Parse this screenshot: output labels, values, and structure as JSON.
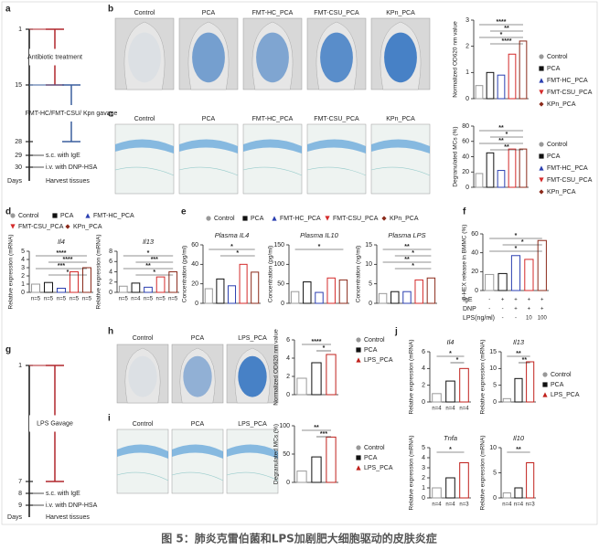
{
  "caption": "图 5：肺炎克雷伯菌和LPS加剧肥大细胞驱动的皮肤炎症",
  "panel_labels": [
    "a",
    "b",
    "c",
    "d",
    "e",
    "f",
    "g",
    "h",
    "i",
    "j"
  ],
  "timelines": [
    {
      "days": [
        1,
        15,
        28,
        29,
        30
      ],
      "axis_label": "Days",
      "treatments": [
        "Antibiotic treatment",
        "FMT-HC/FMT-CSU/ Kpn gavage"
      ],
      "treatment_colors": [
        "#b0262b",
        "#3a5f9e"
      ],
      "steps": [
        "s.c. with IgE",
        "i.v. with DNP-HSA",
        "Harvest tissues"
      ]
    },
    {
      "days": [
        1,
        7,
        8,
        9
      ],
      "axis_label": "Days",
      "treatments": [
        "LPS Gavage"
      ],
      "treatment_colors": [
        "#b0262b"
      ],
      "steps": [
        "s.c. with IgE",
        "i.v. with DNP-HSA",
        "Harvest tissues"
      ]
    }
  ],
  "image_rows": [
    {
      "labels": [
        "Control",
        "PCA",
        "FMT-HC_PCA",
        "FMT-CSU_PCA",
        "KPn_PCA"
      ]
    },
    {
      "labels": [
        "Control",
        "PCA",
        "FMT-HC_PCA",
        "FMT-CSU_PCA",
        "KPn_PCA"
      ]
    },
    {
      "labels": [
        "Control",
        "PCA",
        "LPS_PCA"
      ]
    },
    {
      "labels": [
        "Control",
        "PCA",
        "LPS_PCA"
      ]
    }
  ],
  "legends": [
    {
      "items": [
        {
          "name": "Control",
          "color": "#999999",
          "marker": "circle"
        },
        {
          "name": "PCA",
          "color": "#111111",
          "marker": "square"
        },
        {
          "name": "FMT-HC_PCA",
          "color": "#2b3fb0",
          "marker": "triangle"
        },
        {
          "name": "FMT-CSU_PCA",
          "color": "#d42a2a",
          "marker": "down"
        },
        {
          "name": "KPn_PCA",
          "color": "#8b2a1a",
          "marker": "diamond"
        }
      ]
    },
    {
      "items": [
        {
          "name": "Control",
          "color": "#999999",
          "marker": "circle"
        },
        {
          "name": "PCA",
          "color": "#111111",
          "marker": "square"
        },
        {
          "name": "FMT-HC_PCA",
          "color": "#2b3fb0",
          "marker": "triangle"
        },
        {
          "name": "FMT-CSU_PCA",
          "color": "#d42a2a",
          "marker": "down"
        },
        {
          "name": "KPn_PCA",
          "color": "#8b2a1a",
          "marker": "diamond"
        }
      ]
    },
    {
      "items": [
        {
          "name": "Control",
          "color": "#999999",
          "marker": "circle"
        },
        {
          "name": "PCA",
          "color": "#111111",
          "marker": "square"
        },
        {
          "name": "FMT-HC_PCA",
          "color": "#2b3fb0",
          "marker": "triangle"
        },
        {
          "name": "FMT-CSU_PCA",
          "color": "#d42a2a",
          "marker": "down"
        },
        {
          "name": "KPn_PCA",
          "color": "#8b2a1a",
          "marker": "diamond"
        }
      ]
    },
    {
      "items": [
        {
          "name": "Control",
          "color": "#999999",
          "marker": "circle"
        },
        {
          "name": "PCA",
          "color": "#111111",
          "marker": "square"
        },
        {
          "name": "FMT-HC_PCA",
          "color": "#2b3fb0",
          "marker": "triangle"
        },
        {
          "name": "FMT-CSU_PCA",
          "color": "#d42a2a",
          "marker": "down"
        },
        {
          "name": "KPn_PCA",
          "color": "#8b2a1a",
          "marker": "diamond"
        }
      ]
    },
    {
      "items": [
        {
          "name": "Control",
          "color": "#999999",
          "marker": "circle"
        },
        {
          "name": "PCA",
          "color": "#111111",
          "marker": "square"
        },
        {
          "name": "LPS_PCA",
          "color": "#c0201b",
          "marker": "triangle"
        }
      ]
    },
    {
      "items": [
        {
          "name": "Control",
          "color": "#999999",
          "marker": "circle"
        },
        {
          "name": "PCA",
          "color": "#111111",
          "marker": "square"
        },
        {
          "name": "LPS_PCA",
          "color": "#c0201b",
          "marker": "triangle"
        }
      ]
    },
    {
      "items": [
        {
          "name": "Control",
          "color": "#999999",
          "marker": "circle"
        },
        {
          "name": "PCA",
          "color": "#111111",
          "marker": "square"
        },
        {
          "name": "LPS_PCA",
          "color": "#c0201b",
          "marker": "triangle"
        }
      ]
    }
  ],
  "f_table": {
    "rows": [
      {
        "label": "IgE",
        "cells": [
          "-",
          "+",
          "+",
          "+",
          "+"
        ]
      },
      {
        "label": "DNP",
        "cells": [
          "-",
          "-",
          "+",
          "+",
          "+"
        ]
      },
      {
        "label": "LPS(ng/ml)",
        "cells": [
          "-",
          "-",
          "-",
          "10",
          "100"
        ]
      }
    ]
  },
  "chart_data": [
    {
      "type": "bar",
      "ylabel": "Normalized OD620 nm value",
      "categories": [
        null,
        null,
        null,
        null,
        null
      ],
      "values": [
        0.5,
        1.0,
        0.9,
        1.7,
        2.2
      ],
      "colors": [
        "#999999",
        "#111111",
        "#2b3fb0",
        "#d42a2a",
        "#8b2a1a"
      ],
      "ylim": [
        0,
        3
      ],
      "yticks": [
        0,
        1,
        2,
        3
      ],
      "stars": [
        "****",
        "**",
        "*",
        "****"
      ]
    },
    {
      "type": "bar",
      "ylabel": "Degranulated MCs (%)",
      "categories": [
        null,
        null,
        null,
        null,
        null
      ],
      "values": [
        18,
        45,
        22,
        50,
        50
      ],
      "colors": [
        "#999999",
        "#111111",
        "#2b3fb0",
        "#d42a2a",
        "#8b2a1a"
      ],
      "ylim": [
        0,
        80
      ],
      "yticks": [
        0,
        20,
        40,
        60,
        80
      ],
      "stars": [
        "**",
        "*",
        "**",
        "**"
      ]
    },
    {
      "type": "bar",
      "title": "Il4",
      "ylabel": "Relative expression (mRNA)",
      "categories": [
        "n=5",
        "n=5",
        "n=5",
        "n=5",
        "n=5"
      ],
      "values": [
        1.0,
        1.2,
        0.5,
        2.5,
        3.0
      ],
      "colors": [
        "#999999",
        "#111111",
        "#2b3fb0",
        "#d42a2a",
        "#8b2a1a"
      ],
      "ylim": [
        0,
        5
      ],
      "yticks": [
        0,
        1,
        2,
        3,
        4,
        5
      ],
      "stars": [
        "****",
        "****",
        "***",
        "*"
      ]
    },
    {
      "type": "bar",
      "title": "Il13",
      "ylabel": "Relative expression (mRNA)",
      "categories": [
        "n=5",
        "n=4",
        "n=5",
        "n=5",
        "n=5"
      ],
      "values": [
        1.2,
        1.8,
        1.0,
        3.0,
        4.0
      ],
      "colors": [
        "#999999",
        "#111111",
        "#2b3fb0",
        "#d42a2a",
        "#8b2a1a"
      ],
      "ylim": [
        0,
        8
      ],
      "yticks": [
        0,
        2,
        4,
        6,
        8
      ],
      "stars": [
        "*",
        "***",
        "**",
        "*"
      ]
    },
    {
      "type": "bar",
      "title": "Plasma IL4",
      "ylabel": "Concentration (pg/ml)",
      "categories": [
        null,
        null,
        null,
        null,
        null
      ],
      "values": [
        15,
        25,
        18,
        40,
        32
      ],
      "colors": [
        "#999999",
        "#111111",
        "#2b3fb0",
        "#d42a2a",
        "#8b2a1a"
      ],
      "ylim": [
        0,
        60
      ],
      "yticks": [
        0,
        20,
        40,
        60
      ],
      "stars": [
        "*",
        "*"
      ]
    },
    {
      "type": "bar",
      "title": "Plasma IL10",
      "ylabel": "Concentration (pg/ml)",
      "categories": [
        null,
        null,
        null,
        null,
        null
      ],
      "values": [
        30,
        55,
        28,
        65,
        60
      ],
      "colors": [
        "#999999",
        "#111111",
        "#2b3fb0",
        "#d42a2a",
        "#8b2a1a"
      ],
      "ylim": [
        0,
        150
      ],
      "yticks": [
        0,
        50,
        100,
        150
      ],
      "stars": [
        "*"
      ]
    },
    {
      "type": "bar",
      "title": "Plasma LPS",
      "ylabel": "Concentration (ng/ml)",
      "categories": [
        null,
        null,
        null,
        null,
        null
      ],
      "values": [
        2.5,
        3.0,
        3.0,
        6.0,
        6.5
      ],
      "colors": [
        "#999999",
        "#111111",
        "#2b3fb0",
        "#d42a2a",
        "#8b2a1a"
      ],
      "ylim": [
        0,
        15
      ],
      "yticks": [
        0,
        5,
        10,
        15
      ],
      "stars": [
        "**",
        "*",
        "**",
        "*"
      ]
    },
    {
      "type": "bar",
      "ylabel": "β-HEX release in BMMC (%)",
      "categories": [
        null,
        null,
        null,
        null,
        null
      ],
      "values": [
        17,
        18,
        37,
        33,
        53
      ],
      "colors": [
        "#999999",
        "#111111",
        "#2b3fb0",
        "#d42a2a",
        "#8b2a1a"
      ],
      "ylim": [
        0,
        60
      ],
      "yticks": [
        0,
        20,
        40,
        60
      ],
      "stars": [
        "*",
        "*",
        "*"
      ]
    },
    {
      "type": "bar",
      "ylabel": "Normalized OD620 nm value",
      "categories": [
        null,
        null,
        null
      ],
      "values": [
        1.8,
        3.5,
        4.4
      ],
      "colors": [
        "#999999",
        "#111111",
        "#c0201b"
      ],
      "ylim": [
        0,
        6
      ],
      "yticks": [
        0,
        2,
        4,
        6
      ],
      "stars": [
        "****",
        "*"
      ]
    },
    {
      "type": "bar",
      "ylabel": "Degranulated MCs (%)",
      "categories": [
        null,
        null,
        null
      ],
      "values": [
        20,
        45,
        80
      ],
      "colors": [
        "#999999",
        "#111111",
        "#c0201b"
      ],
      "ylim": [
        0,
        100
      ],
      "yticks": [
        0,
        50,
        100
      ],
      "stars": [
        "**",
        "***"
      ]
    },
    {
      "type": "bar",
      "title": "Il4",
      "ylabel": "Relative expression (mRNA)",
      "categories": [
        "n=4",
        "n=4",
        "n=4"
      ],
      "values": [
        1.0,
        2.5,
        4.0
      ],
      "colors": [
        "#999999",
        "#111111",
        "#c0201b"
      ],
      "ylim": [
        0,
        6
      ],
      "yticks": [
        0,
        2,
        4,
        6
      ],
      "stars": [
        "*",
        "*"
      ]
    },
    {
      "type": "bar",
      "title": "Il13",
      "ylabel": "Relative expression (mRNA)",
      "categories": [
        null,
        null,
        null
      ],
      "values": [
        1.0,
        7.0,
        12.0
      ],
      "colors": [
        "#999999",
        "#111111",
        "#c0201b"
      ],
      "ylim": [
        0,
        15
      ],
      "yticks": [
        0,
        5,
        10,
        15
      ],
      "stars": [
        "**",
        "**"
      ]
    },
    {
      "type": "bar",
      "title": "Tnfa",
      "ylabel": "Relative expression (mRNA)",
      "categories": [
        "n=4",
        "n=4",
        "n=3"
      ],
      "values": [
        1.0,
        2.0,
        3.5
      ],
      "colors": [
        "#999999",
        "#111111",
        "#c0201b"
      ],
      "ylim": [
        0,
        5
      ],
      "yticks": [
        0,
        1,
        2,
        3,
        4,
        5
      ],
      "stars": [
        "*"
      ]
    },
    {
      "type": "bar",
      "title": "Il10",
      "ylabel": "Relative expression (mRNA)",
      "categories": [
        "n=4",
        "n=4",
        "n=3"
      ],
      "values": [
        1.0,
        2.0,
        7.0
      ],
      "colors": [
        "#999999",
        "#111111",
        "#c0201b"
      ],
      "ylim": [
        0,
        10
      ],
      "yticks": [
        0,
        5,
        10
      ],
      "stars": [
        "**"
      ]
    }
  ]
}
